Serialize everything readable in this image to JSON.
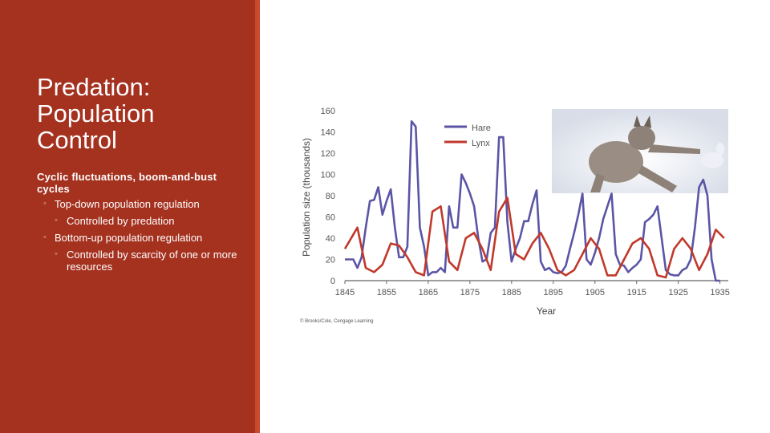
{
  "slide": {
    "title": "Predation:\nPopulation\nControl",
    "bullets": {
      "main": "Cyclic fluctuations, boom-and-bust cycles",
      "sub1": "Top-down population regulation",
      "sub1_child": "Controlled by predation",
      "sub2": "Bottom-up population regulation",
      "sub2_child": "Controlled by scarcity of one or more resources"
    },
    "bullet_glyph": "◦",
    "copyright": "© Brooks/Cole, Cengage Learning",
    "colors": {
      "sidebar": "#a5311f",
      "hare": "#5b55a6",
      "lynx": "#c0392b"
    }
  },
  "chart_data": {
    "type": "line",
    "xlabel": "Year",
    "ylabel": "Population size (thousands)",
    "xlim": [
      1845,
      1937
    ],
    "ylim": [
      0,
      160
    ],
    "x_ticks": [
      1845,
      1855,
      1865,
      1875,
      1885,
      1895,
      1905,
      1915,
      1925,
      1935
    ],
    "y_ticks": [
      0,
      20,
      40,
      60,
      80,
      100,
      120,
      140,
      160
    ],
    "legend_position": "top-right",
    "series": [
      {
        "name": "Hare",
        "color": "#5b55a6",
        "x": [
          1845,
          1847,
          1848,
          1849,
          1850,
          1851,
          1852,
          1853,
          1854,
          1855,
          1856,
          1857,
          1858,
          1859,
          1860,
          1861,
          1862,
          1863,
          1864,
          1865,
          1866,
          1867,
          1868,
          1869,
          1870,
          1871,
          1872,
          1873,
          1874,
          1875,
          1876,
          1877,
          1878,
          1879,
          1880,
          1881,
          1882,
          1883,
          1884,
          1885,
          1886,
          1887,
          1888,
          1889,
          1890,
          1891,
          1892,
          1893,
          1894,
          1895,
          1896,
          1897,
          1898,
          1899,
          1900,
          1901,
          1902,
          1903,
          1904,
          1905,
          1906,
          1907,
          1908,
          1909,
          1910,
          1911,
          1912,
          1913,
          1914,
          1915,
          1916,
          1917,
          1918,
          1919,
          1920,
          1921,
          1922,
          1923,
          1924,
          1925,
          1926,
          1927,
          1928,
          1929,
          1930,
          1931,
          1932,
          1933,
          1934,
          1935
        ],
        "y": [
          20,
          20,
          12,
          22,
          50,
          75,
          76,
          88,
          62,
          75,
          86,
          50,
          22,
          22,
          32,
          150,
          145,
          50,
          32,
          5,
          8,
          8,
          12,
          8,
          70,
          50,
          50,
          100,
          92,
          82,
          70,
          40,
          18,
          20,
          45,
          50,
          135,
          135,
          55,
          18,
          30,
          40,
          56,
          56,
          72,
          85,
          18,
          10,
          12,
          8,
          7,
          8,
          14,
          30,
          45,
          62,
          82,
          20,
          15,
          26,
          40,
          58,
          70,
          82,
          25,
          15,
          14,
          8,
          12,
          15,
          20,
          55,
          58,
          62,
          70,
          40,
          10,
          6,
          5,
          5,
          10,
          12,
          20,
          50,
          88,
          95,
          80,
          20,
          0,
          0
        ]
      },
      {
        "name": "Lynx",
        "color": "#c0392b",
        "x": [
          1845,
          1848,
          1850,
          1852,
          1854,
          1856,
          1858,
          1860,
          1862,
          1864,
          1866,
          1868,
          1870,
          1872,
          1874,
          1876,
          1878,
          1880,
          1882,
          1884,
          1886,
          1888,
          1890,
          1892,
          1894,
          1896,
          1898,
          1900,
          1902,
          1904,
          1906,
          1908,
          1910,
          1912,
          1914,
          1916,
          1918,
          1920,
          1922,
          1924,
          1926,
          1928,
          1930,
          1932,
          1934,
          1936
        ],
        "y": [
          30,
          50,
          12,
          8,
          15,
          35,
          33,
          22,
          8,
          5,
          65,
          70,
          18,
          10,
          40,
          45,
          30,
          10,
          65,
          78,
          25,
          20,
          35,
          45,
          30,
          10,
          5,
          10,
          25,
          40,
          30,
          5,
          5,
          20,
          35,
          40,
          30,
          5,
          3,
          30,
          40,
          30,
          10,
          25,
          48,
          40
        ]
      }
    ]
  }
}
